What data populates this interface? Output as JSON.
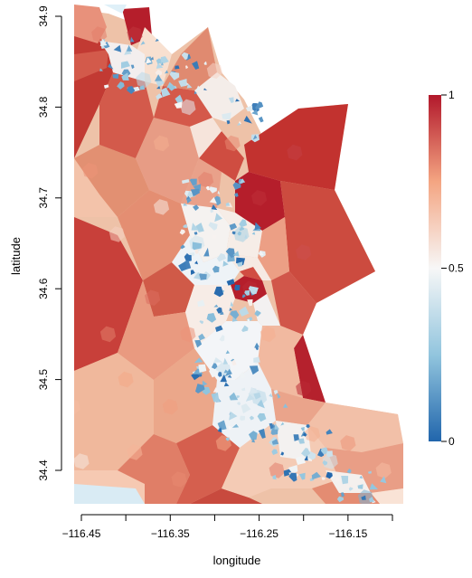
{
  "chart_data": {
    "type": "heatmap",
    "subtype": "voronoi-tessellation-map",
    "xlabel": "longitude",
    "ylabel": "latitude",
    "xlim": [
      -116.49,
      -116.085
    ],
    "ylim": [
      34.355,
      34.905
    ],
    "x_ticks": [
      -116.45,
      -116.35,
      -116.25,
      -116.15
    ],
    "x_tick_labels": [
      "−116.45",
      "−116.35",
      "−116.25",
      "−116.15"
    ],
    "y_ticks": [
      34.4,
      34.5,
      34.6,
      34.7,
      34.8,
      34.9
    ],
    "y_tick_labels": [
      "34.4",
      "34.5",
      "34.6",
      "34.7",
      "34.8",
      "34.9"
    ],
    "colorbar": {
      "min": 0,
      "max": 1,
      "ticks": [
        0,
        0.5,
        1
      ],
      "tick_labels": [
        "0",
        "0.5",
        "1"
      ],
      "colors": {
        "low": "#2166ac",
        "mid": "#f7f7f7",
        "high": "#b2182b"
      }
    },
    "grid": false,
    "region_values": [
      {
        "lon": -116.47,
        "lat": 34.63,
        "value": 0.92
      },
      {
        "lon": -116.47,
        "lat": 34.79,
        "value": 0.93
      },
      {
        "lon": -116.46,
        "lat": 34.47,
        "value": 0.68
      },
      {
        "lon": -116.45,
        "lat": 34.41,
        "value": 0.55
      },
      {
        "lon": -116.44,
        "lat": 34.73,
        "value": 0.78
      },
      {
        "lon": -116.43,
        "lat": 34.88,
        "value": 0.82
      },
      {
        "lon": -116.42,
        "lat": 34.55,
        "value": 0.82
      },
      {
        "lon": -116.41,
        "lat": 34.66,
        "value": 0.62
      },
      {
        "lon": -116.4,
        "lat": 34.5,
        "value": 0.74
      },
      {
        "lon": -116.39,
        "lat": 34.42,
        "value": 0.7
      },
      {
        "lon": -116.39,
        "lat": 34.88,
        "value": 0.95
      },
      {
        "lon": -116.38,
        "lat": 34.83,
        "value": 0.35
      },
      {
        "lon": -116.37,
        "lat": 34.59,
        "value": 0.85
      },
      {
        "lon": -116.36,
        "lat": 34.76,
        "value": 0.72
      },
      {
        "lon": -116.36,
        "lat": 34.69,
        "value": 0.55
      },
      {
        "lon": -116.35,
        "lat": 34.47,
        "value": 0.76
      },
      {
        "lon": -116.34,
        "lat": 34.39,
        "value": 0.8
      },
      {
        "lon": -116.33,
        "lat": 34.8,
        "value": 0.45
      },
      {
        "lon": -116.33,
        "lat": 34.55,
        "value": 0.78
      },
      {
        "lon": -116.32,
        "lat": 34.65,
        "value": 0.4
      },
      {
        "lon": -116.31,
        "lat": 34.72,
        "value": 0.82
      },
      {
        "lon": -116.3,
        "lat": 34.84,
        "value": 0.6
      },
      {
        "lon": -116.29,
        "lat": 34.51,
        "value": 0.38
      },
      {
        "lon": -116.29,
        "lat": 34.43,
        "value": 0.74
      },
      {
        "lon": -116.28,
        "lat": 34.76,
        "value": 0.8
      },
      {
        "lon": -116.27,
        "lat": 34.66,
        "value": 0.3
      },
      {
        "lon": -116.26,
        "lat": 34.6,
        "value": 0.97
      },
      {
        "lon": -116.25,
        "lat": 34.7,
        "value": 0.96
      },
      {
        "lon": -116.25,
        "lat": 34.48,
        "value": 0.35
      },
      {
        "lon": -116.24,
        "lat": 34.55,
        "value": 0.72
      },
      {
        "lon": -116.23,
        "lat": 34.4,
        "value": 0.82
      },
      {
        "lon": -116.21,
        "lat": 34.75,
        "value": 0.93
      },
      {
        "lon": -116.2,
        "lat": 34.64,
        "value": 0.9
      },
      {
        "lon": -116.2,
        "lat": 34.49,
        "value": 0.97
      },
      {
        "lon": -116.19,
        "lat": 34.44,
        "value": 0.72
      },
      {
        "lon": -116.17,
        "lat": 34.41,
        "value": 0.4
      },
      {
        "lon": -116.15,
        "lat": 34.43,
        "value": 0.78
      },
      {
        "lon": -116.13,
        "lat": 34.37,
        "value": 0.2
      },
      {
        "lon": -116.11,
        "lat": 34.4,
        "value": 0.68
      }
    ]
  }
}
